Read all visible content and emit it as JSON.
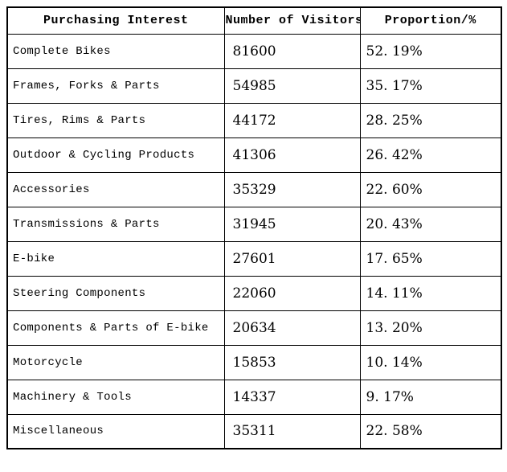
{
  "colors": {
    "border": "#000000",
    "text": "#000000",
    "background": "#ffffff"
  },
  "table": {
    "header": {
      "interest": "Purchasing Interest",
      "visitors": "Number of Visitors",
      "proportion": "Proportion/%"
    },
    "rows": [
      {
        "interest": "Complete Bikes",
        "visitors": "81600",
        "proportion": "52. 19%"
      },
      {
        "interest": "Frames, Forks & Parts",
        "visitors": "54985",
        "proportion": "35. 17%"
      },
      {
        "interest": "Tires, Rims & Parts",
        "visitors": "44172",
        "proportion": "28. 25%"
      },
      {
        "interest": "Outdoor & Cycling Products",
        "visitors": "41306",
        "proportion": "26. 42%"
      },
      {
        "interest": "Accessories",
        "visitors": "35329",
        "proportion": "22. 60%"
      },
      {
        "interest": "Transmissions & Parts",
        "visitors": "31945",
        "proportion": "20. 43%"
      },
      {
        "interest": "E-bike",
        "visitors": "27601",
        "proportion": "17. 65%"
      },
      {
        "interest": "Steering Components",
        "visitors": "22060",
        "proportion": "14. 11%"
      },
      {
        "interest": "Components & Parts of E-bike",
        "visitors": "20634",
        "proportion": "13. 20%"
      },
      {
        "interest": "Motorcycle",
        "visitors": "15853",
        "proportion": "10. 14%"
      },
      {
        "interest": "Machinery & Tools",
        "visitors": "14337",
        "proportion": "9. 17%"
      },
      {
        "interest": "Miscellaneous",
        "visitors": "35311",
        "proportion": "22. 58%"
      }
    ]
  },
  "chart_data": {
    "type": "table",
    "columns": [
      "Purchasing Interest",
      "Number of Visitors",
      "Proportion/%"
    ],
    "rows": [
      [
        "Complete Bikes",
        81600,
        52.19
      ],
      [
        "Frames, Forks & Parts",
        54985,
        35.17
      ],
      [
        "Tires, Rims & Parts",
        44172,
        28.25
      ],
      [
        "Outdoor & Cycling Products",
        41306,
        26.42
      ],
      [
        "Accessories",
        35329,
        22.6
      ],
      [
        "Transmissions & Parts",
        31945,
        20.43
      ],
      [
        "E-bike",
        27601,
        17.65
      ],
      [
        "Steering Components",
        22060,
        14.11
      ],
      [
        "Components & Parts of E-bike",
        20634,
        13.2
      ],
      [
        "Motorcycle",
        15853,
        10.14
      ],
      [
        "Machinery & Tools",
        14337,
        9.17
      ],
      [
        "Miscellaneous",
        35311,
        22.58
      ]
    ]
  }
}
